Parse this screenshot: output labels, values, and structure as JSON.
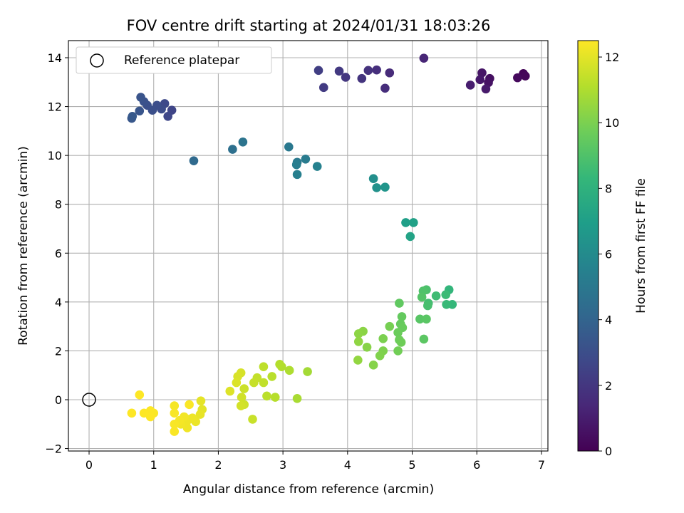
{
  "chart_data": {
    "type": "scatter",
    "title": "FOV centre drift starting at 2024/01/31 18:03:26",
    "xlabel": "Angular distance from reference (arcmin)",
    "ylabel": "Rotation from reference (arcmin)",
    "xlim": [
      -0.32,
      7.1
    ],
    "ylim": [
      -2.1,
      14.7
    ],
    "xticks": [
      0,
      1,
      2,
      3,
      4,
      5,
      6,
      7
    ],
    "yticks": [
      -2,
      0,
      2,
      4,
      6,
      8,
      10,
      12,
      14
    ],
    "grid": true,
    "legend": {
      "position": "top-left",
      "entries": [
        "Reference platepar"
      ]
    },
    "reference_point": {
      "x": 0,
      "y": 0
    },
    "colorbar": {
      "label": "Hours from first FF file",
      "range": [
        0,
        12.5
      ],
      "ticks": [
        0,
        2,
        4,
        6,
        8,
        10,
        12
      ],
      "colormap": "viridis"
    },
    "points": [
      [
        6.72,
        13.35,
        0.1
      ],
      [
        6.75,
        13.25,
        0.2
      ],
      [
        6.63,
        13.18,
        0.3
      ],
      [
        6.2,
        13.15,
        0.5
      ],
      [
        6.18,
        12.98,
        0.6
      ],
      [
        6.08,
        13.38,
        0.7
      ],
      [
        6.05,
        13.1,
        0.8
      ],
      [
        6.14,
        12.72,
        0.9
      ],
      [
        5.9,
        12.88,
        1.0
      ],
      [
        5.18,
        13.98,
        1.3
      ],
      [
        4.65,
        13.38,
        1.5
      ],
      [
        4.58,
        12.75,
        1.6
      ],
      [
        4.45,
        13.5,
        1.7
      ],
      [
        4.32,
        13.48,
        1.8
      ],
      [
        4.22,
        13.15,
        1.9
      ],
      [
        3.97,
        13.2,
        2.0
      ],
      [
        3.87,
        13.45,
        2.1
      ],
      [
        3.63,
        12.78,
        2.2
      ],
      [
        3.55,
        13.48,
        2.3
      ],
      [
        1.28,
        11.85,
        2.6
      ],
      [
        1.22,
        11.6,
        2.7
      ],
      [
        1.17,
        12.12,
        2.8
      ],
      [
        1.12,
        11.9,
        2.9
      ],
      [
        1.05,
        12.05,
        3.0
      ],
      [
        0.98,
        11.85,
        3.05
      ],
      [
        0.9,
        12.05,
        3.1
      ],
      [
        0.85,
        12.2,
        3.2
      ],
      [
        0.8,
        12.38,
        3.25
      ],
      [
        0.78,
        11.82,
        3.3
      ],
      [
        0.66,
        11.52,
        3.4
      ],
      [
        0.67,
        11.6,
        3.5
      ],
      [
        1.62,
        9.78,
        4.3
      ],
      [
        2.22,
        10.25,
        4.6
      ],
      [
        2.38,
        10.55,
        4.8
      ],
      [
        3.09,
        10.35,
        5.0
      ],
      [
        3.22,
        9.72,
        5.1
      ],
      [
        3.35,
        9.85,
        5.2
      ],
      [
        3.21,
        9.62,
        5.3
      ],
      [
        3.22,
        9.22,
        5.4
      ],
      [
        3.53,
        9.55,
        5.5
      ],
      [
        4.4,
        9.05,
        6.2
      ],
      [
        4.45,
        8.68,
        6.3
      ],
      [
        4.58,
        8.7,
        6.5
      ],
      [
        4.9,
        7.25,
        7.0
      ],
      [
        5.02,
        7.25,
        7.1
      ],
      [
        4.97,
        6.68,
        7.2
      ],
      [
        5.57,
        4.5,
        8.2
      ],
      [
        5.62,
        3.9,
        8.3
      ],
      [
        5.53,
        3.9,
        8.4
      ],
      [
        5.52,
        4.3,
        8.5
      ],
      [
        5.37,
        4.25,
        8.6
      ],
      [
        5.25,
        3.95,
        8.7
      ],
      [
        5.24,
        3.85,
        8.8
      ],
      [
        5.22,
        4.5,
        8.9
      ],
      [
        5.17,
        4.45,
        9.0
      ],
      [
        5.15,
        4.2,
        9.1
      ],
      [
        5.12,
        3.3,
        9.2
      ],
      [
        5.22,
        3.3,
        9.25
      ],
      [
        5.18,
        2.48,
        9.3
      ],
      [
        4.8,
        3.95,
        9.4
      ],
      [
        4.84,
        3.4,
        9.5
      ],
      [
        4.82,
        3.1,
        9.55
      ],
      [
        4.85,
        2.95,
        9.6
      ],
      [
        4.78,
        2.75,
        9.65
      ],
      [
        4.8,
        2.45,
        9.7
      ],
      [
        4.83,
        2.35,
        9.75
      ],
      [
        4.78,
        2.0,
        9.8
      ],
      [
        4.65,
        3.0,
        9.9
      ],
      [
        4.55,
        2.5,
        10.0
      ],
      [
        4.55,
        2.0,
        10.05
      ],
      [
        4.5,
        1.8,
        10.1
      ],
      [
        4.4,
        1.42,
        10.2
      ],
      [
        4.3,
        2.15,
        10.25
      ],
      [
        4.24,
        2.8,
        10.3
      ],
      [
        4.17,
        2.7,
        10.35
      ],
      [
        4.17,
        2.38,
        10.4
      ],
      [
        4.16,
        1.62,
        10.45
      ],
      [
        3.38,
        1.15,
        10.8
      ],
      [
        3.22,
        0.05,
        10.9
      ],
      [
        3.1,
        1.2,
        11.0
      ],
      [
        2.98,
        1.35,
        11.05
      ],
      [
        2.95,
        1.45,
        11.1
      ],
      [
        2.88,
        0.1,
        11.15
      ],
      [
        2.83,
        0.95,
        11.2
      ],
      [
        2.75,
        0.15,
        11.25
      ],
      [
        2.7,
        1.35,
        11.3
      ],
      [
        2.7,
        0.7,
        11.35
      ],
      [
        2.6,
        0.9,
        11.4
      ],
      [
        2.55,
        0.7,
        11.45
      ],
      [
        2.53,
        -0.8,
        11.5
      ],
      [
        2.4,
        0.45,
        11.55
      ],
      [
        2.4,
        -0.2,
        11.6
      ],
      [
        2.36,
        0.1,
        11.65
      ],
      [
        2.35,
        -0.25,
        11.7
      ],
      [
        2.35,
        1.1,
        11.75
      ],
      [
        2.3,
        0.95,
        11.8
      ],
      [
        2.28,
        0.7,
        11.85
      ],
      [
        2.18,
        0.35,
        11.9
      ],
      [
        1.75,
        -0.4,
        12.0
      ],
      [
        1.73,
        -0.05,
        12.05
      ],
      [
        1.72,
        -0.6,
        12.1
      ],
      [
        1.65,
        -0.9,
        12.15
      ],
      [
        1.6,
        -0.75,
        12.2
      ],
      [
        1.55,
        -0.8,
        12.2
      ],
      [
        1.52,
        -1.15,
        12.25
      ],
      [
        1.5,
        -0.95,
        12.25
      ],
      [
        1.47,
        -0.7,
        12.3
      ],
      [
        1.42,
        -1.0,
        12.3
      ],
      [
        1.4,
        -0.85,
        12.35
      ],
      [
        1.32,
        -0.25,
        12.35
      ],
      [
        1.32,
        -0.55,
        12.4
      ],
      [
        1.32,
        -1.0,
        12.4
      ],
      [
        1.32,
        -1.3,
        12.42
      ],
      [
        1.55,
        -0.2,
        12.45
      ],
      [
        1.0,
        -0.55,
        12.45
      ],
      [
        0.95,
        -0.45,
        12.48
      ],
      [
        0.95,
        -0.7,
        12.5
      ],
      [
        0.85,
        -0.55,
        12.5
      ],
      [
        0.78,
        0.2,
        12.5
      ],
      [
        0.66,
        -0.55,
        12.5
      ]
    ]
  }
}
